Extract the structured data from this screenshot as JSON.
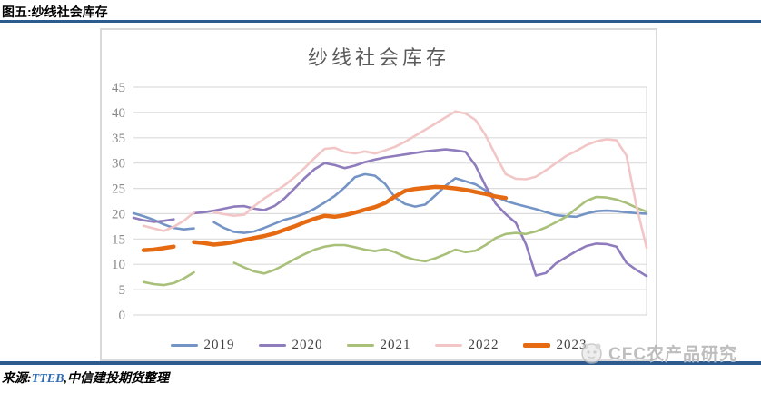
{
  "header": {
    "figure_label": "图五:纱线社会库存"
  },
  "chart_data": {
    "type": "line",
    "title": "纱线社会库存",
    "xlabel": "",
    "ylabel": "",
    "x_unit": "week",
    "x": [
      1,
      2,
      3,
      4,
      5,
      6,
      7,
      8,
      9,
      10,
      11,
      12,
      13,
      14,
      15,
      16,
      17,
      18,
      19,
      20,
      21,
      22,
      23,
      24,
      25,
      26,
      27,
      28,
      29,
      30,
      31,
      32,
      33,
      34,
      35,
      36,
      37,
      38,
      39,
      40,
      41,
      42,
      43,
      44,
      45,
      46,
      47,
      48,
      49,
      50,
      51,
      52
    ],
    "ylim": [
      0,
      45
    ],
    "y_tick_step": 5,
    "grid": "horizontal",
    "x_tick_labels_visible": false,
    "legend_position": "bottom",
    "series": [
      {
        "name": "2019",
        "color": "#7494C6",
        "width": 2.6,
        "values": [
          20.1,
          19.5,
          18.8,
          17.9,
          17.2,
          16.9,
          17.1,
          null,
          18.3,
          17.2,
          16.4,
          16.2,
          16.5,
          17.2,
          18.0,
          18.8,
          19.3,
          20.0,
          21.0,
          22.2,
          23.5,
          25.2,
          27.2,
          27.8,
          27.5,
          25.9,
          23.2,
          21.9,
          21.4,
          21.8,
          23.6,
          25.5,
          27.0,
          26.4,
          25.8,
          24.6,
          23.4,
          22.5,
          21.9,
          21.4,
          20.9,
          20.3,
          19.7,
          19.5,
          19.4,
          20.0,
          20.5,
          20.6,
          20.5,
          20.3,
          20.1,
          20.0
        ]
      },
      {
        "name": "2020",
        "color": "#8F7CBC",
        "width": 2.6,
        "values": [
          19.2,
          18.7,
          18.4,
          18.6,
          18.9,
          null,
          20.1,
          20.3,
          20.6,
          21.0,
          21.4,
          21.5,
          21.0,
          20.7,
          21.5,
          23.0,
          25.0,
          27.0,
          28.8,
          30.0,
          29.6,
          29.0,
          29.5,
          30.2,
          30.7,
          31.1,
          31.4,
          31.7,
          32.0,
          32.3,
          32.5,
          32.7,
          32.5,
          32.2,
          29.5,
          25.5,
          22.0,
          19.9,
          18.2,
          14.0,
          7.8,
          8.3,
          10.2,
          11.4,
          12.6,
          13.6,
          14.1,
          14.0,
          13.5,
          10.3,
          8.9,
          7.7
        ]
      },
      {
        "name": "2021",
        "color": "#A9C079",
        "width": 2.6,
        "values": [
          null,
          6.5,
          6.1,
          5.9,
          6.3,
          7.2,
          8.4,
          null,
          null,
          null,
          10.3,
          9.4,
          8.6,
          8.2,
          8.9,
          9.9,
          11.0,
          12.0,
          12.9,
          13.5,
          13.8,
          13.8,
          13.4,
          12.9,
          12.6,
          13.0,
          12.4,
          11.5,
          10.9,
          10.6,
          11.2,
          12.0,
          12.9,
          12.4,
          12.7,
          13.8,
          15.2,
          16.0,
          16.2,
          16.0,
          16.5,
          17.3,
          18.3,
          19.4,
          21.0,
          22.5,
          23.3,
          23.2,
          22.8,
          22.1,
          21.2,
          20.4
        ]
      },
      {
        "name": "2022",
        "color": "#F2C6C6",
        "width": 2.6,
        "values": [
          null,
          17.6,
          17.1,
          16.6,
          17.4,
          18.6,
          20.2,
          null,
          20.3,
          19.9,
          19.6,
          19.8,
          21.5,
          23.0,
          24.3,
          25.6,
          27.2,
          29.0,
          31.0,
          32.8,
          33.0,
          32.2,
          31.9,
          32.3,
          31.9,
          32.5,
          33.2,
          34.2,
          35.4,
          36.6,
          37.8,
          39.0,
          40.2,
          39.8,
          38.5,
          35.5,
          31.5,
          27.8,
          26.9,
          26.8,
          27.3,
          28.6,
          30.0,
          31.4,
          32.4,
          33.5,
          34.3,
          34.7,
          34.5,
          31.5,
          21.5,
          13.3
        ]
      },
      {
        "name": "2023",
        "color": "#E56A11",
        "width": 4.5,
        "values": [
          null,
          12.8,
          12.9,
          13.2,
          13.5,
          null,
          14.4,
          14.2,
          13.9,
          14.1,
          14.4,
          14.8,
          15.2,
          15.6,
          16.1,
          16.8,
          17.5,
          18.3,
          19.0,
          19.6,
          19.4,
          19.7,
          20.2,
          20.8,
          21.3,
          22.1,
          23.4,
          24.5,
          24.9,
          25.1,
          25.3,
          25.2,
          25.0,
          24.7,
          24.3,
          23.9,
          23.4,
          23.1,
          null,
          null,
          null,
          null,
          null,
          null,
          null,
          null,
          null,
          null,
          null,
          null,
          null,
          null
        ]
      }
    ]
  },
  "footer": {
    "source_prefix": "来源:",
    "source_name": "TTEB",
    "source_suffix": ",中信建投期货整理"
  },
  "watermark": {
    "text": "CFC农产品研究"
  },
  "colors": {
    "rule": "#2E5B8D",
    "grid": "#DCDCDC",
    "tick": "#8A8A8A"
  }
}
